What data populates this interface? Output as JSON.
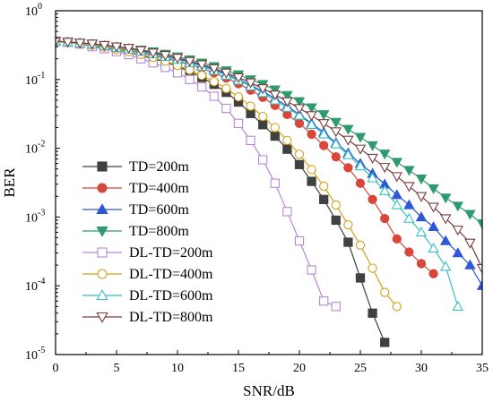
{
  "chart_data": {
    "type": "line",
    "xlabel": "SNR/dB",
    "ylabel": "BER",
    "xlim": [
      0,
      35
    ],
    "ylim": [
      1e-05,
      1
    ],
    "yscale": "log",
    "xticks": [
      0,
      5,
      10,
      15,
      20,
      25,
      30,
      35
    ],
    "xtick_labels": [
      "0",
      "5",
      "10",
      "15",
      "20",
      "25",
      "30",
      "35"
    ],
    "yticks": [
      1e-05,
      0.0001,
      0.001,
      0.01,
      0.1,
      1
    ],
    "ytick_labels": [
      {
        "base": "10",
        "exp": "-5"
      },
      {
        "base": "10",
        "exp": "-4"
      },
      {
        "base": "10",
        "exp": "-3"
      },
      {
        "base": "10",
        "exp": "-2"
      },
      {
        "base": "10",
        "exp": "-1"
      },
      {
        "base": "10",
        "exp": "0"
      }
    ],
    "legend_position": "center-left",
    "series": [
      {
        "name": "TD=200m",
        "color": "#404040",
        "marker": "square",
        "filled": true,
        "x": [
          0,
          1,
          2,
          3,
          4,
          5,
          6,
          7,
          8,
          9,
          10,
          11,
          12,
          13,
          14,
          15,
          16,
          17,
          18,
          19,
          20,
          21,
          22,
          23,
          24,
          25,
          26,
          27
        ],
        "y": [
          0.36,
          0.35,
          0.33,
          0.31,
          0.29,
          0.27,
          0.25,
          0.225,
          0.2,
          0.18,
          0.155,
          0.13,
          0.107,
          0.085,
          0.065,
          0.047,
          0.032,
          0.022,
          0.015,
          0.0097,
          0.0058,
          0.0033,
          0.0018,
          0.0009,
          0.00043,
          0.00013,
          4e-05,
          1.5e-05
        ]
      },
      {
        "name": "TD=400m",
        "color": "#d9463a",
        "marker": "circle",
        "filled": true,
        "x": [
          0,
          1,
          2,
          3,
          4,
          5,
          6,
          7,
          8,
          9,
          10,
          11,
          12,
          13,
          14,
          15,
          16,
          17,
          18,
          19,
          20,
          21,
          22,
          23,
          24,
          25,
          26,
          27,
          28,
          29,
          30,
          31
        ],
        "y": [
          0.36,
          0.35,
          0.34,
          0.32,
          0.3,
          0.285,
          0.265,
          0.245,
          0.225,
          0.205,
          0.185,
          0.165,
          0.145,
          0.125,
          0.105,
          0.087,
          0.07,
          0.055,
          0.042,
          0.031,
          0.023,
          0.016,
          0.011,
          0.0075,
          0.0052,
          0.0031,
          0.0018,
          0.00095,
          0.00048,
          0.00031,
          0.00021,
          0.00015
        ]
      },
      {
        "name": "TD=600m",
        "color": "#2e57d6",
        "marker": "triangle-up",
        "filled": true,
        "x": [
          0,
          1,
          2,
          3,
          4,
          5,
          6,
          7,
          8,
          9,
          10,
          11,
          12,
          13,
          14,
          15,
          16,
          17,
          18,
          19,
          20,
          21,
          22,
          23,
          24,
          25,
          26,
          27,
          28,
          29,
          30,
          31,
          32,
          33,
          34,
          35
        ],
        "y": [
          0.36,
          0.35,
          0.34,
          0.325,
          0.31,
          0.295,
          0.28,
          0.26,
          0.24,
          0.22,
          0.2,
          0.18,
          0.16,
          0.14,
          0.12,
          0.1,
          0.083,
          0.067,
          0.053,
          0.041,
          0.031,
          0.023,
          0.017,
          0.012,
          0.0085,
          0.006,
          0.0043,
          0.003,
          0.0021,
          0.0015,
          0.001,
          0.00072,
          0.00045,
          0.0003,
          0.0002,
          0.0001
        ]
      },
      {
        "name": "TD=800m",
        "color": "#2e9a6e",
        "marker": "triangle-down",
        "filled": true,
        "x": [
          0,
          1,
          2,
          3,
          4,
          5,
          6,
          7,
          8,
          9,
          10,
          11,
          12,
          13,
          14,
          15,
          16,
          17,
          18,
          19,
          20,
          21,
          22,
          23,
          24,
          25,
          26,
          27,
          28,
          29,
          30,
          31,
          32,
          33,
          34,
          35
        ],
        "y": [
          0.36,
          0.35,
          0.34,
          0.33,
          0.315,
          0.3,
          0.285,
          0.27,
          0.255,
          0.235,
          0.215,
          0.195,
          0.175,
          0.155,
          0.135,
          0.118,
          0.1,
          0.085,
          0.071,
          0.059,
          0.048,
          0.039,
          0.031,
          0.024,
          0.019,
          0.0145,
          0.011,
          0.0083,
          0.0063,
          0.0048,
          0.0036,
          0.0026,
          0.0019,
          0.00145,
          0.0011,
          0.0008
        ]
      },
      {
        "name": "DL-TD=200m",
        "color": "#b388d6",
        "marker": "square",
        "filled": false,
        "x": [
          0,
          1,
          2,
          3,
          4,
          5,
          6,
          7,
          8,
          9,
          10,
          11,
          12,
          13,
          14,
          15,
          16,
          17,
          18,
          19,
          20,
          21,
          22,
          23
        ],
        "y": [
          0.36,
          0.35,
          0.33,
          0.3,
          0.28,
          0.255,
          0.23,
          0.2,
          0.175,
          0.15,
          0.125,
          0.1,
          0.078,
          0.057,
          0.038,
          0.023,
          0.013,
          0.0068,
          0.0031,
          0.0012,
          0.00045,
          0.00017,
          6e-05,
          5e-05
        ]
      },
      {
        "name": "DL-TD=400m",
        "color": "#d4a017",
        "marker": "circle",
        "filled": false,
        "x": [
          0,
          1,
          2,
          3,
          4,
          5,
          6,
          7,
          8,
          9,
          10,
          11,
          12,
          13,
          14,
          15,
          16,
          17,
          18,
          19,
          20,
          21,
          22,
          23,
          24,
          25,
          26,
          27,
          28
        ],
        "y": [
          0.36,
          0.35,
          0.335,
          0.315,
          0.295,
          0.275,
          0.255,
          0.23,
          0.21,
          0.185,
          0.16,
          0.138,
          0.115,
          0.093,
          0.074,
          0.056,
          0.041,
          0.029,
          0.02,
          0.013,
          0.0082,
          0.0049,
          0.0028,
          0.0015,
          0.00077,
          0.00039,
          0.00018,
          8e-05,
          5e-05
        ]
      },
      {
        "name": "DL-TD=600m",
        "color": "#35c2c2",
        "marker": "triangle-up",
        "filled": false,
        "x": [
          0,
          1,
          2,
          3,
          4,
          5,
          6,
          7,
          8,
          9,
          10,
          11,
          12,
          13,
          14,
          15,
          16,
          17,
          18,
          19,
          20,
          21,
          22,
          23,
          24,
          25,
          26,
          27,
          28,
          29,
          30,
          31,
          32,
          33
        ],
        "y": [
          0.36,
          0.35,
          0.34,
          0.325,
          0.31,
          0.29,
          0.275,
          0.255,
          0.235,
          0.215,
          0.195,
          0.175,
          0.155,
          0.135,
          0.115,
          0.097,
          0.08,
          0.064,
          0.05,
          0.039,
          0.03,
          0.022,
          0.016,
          0.0115,
          0.008,
          0.0055,
          0.0037,
          0.0024,
          0.0015,
          0.00095,
          0.0006,
          0.00035,
          0.00019,
          5e-05
        ]
      },
      {
        "name": "DL-TD=800m",
        "color": "#7a3b3b",
        "marker": "triangle-down",
        "filled": false,
        "x": [
          0,
          1,
          2,
          3,
          4,
          5,
          6,
          7,
          8,
          9,
          10,
          11,
          12,
          13,
          14,
          15,
          16,
          17,
          18,
          19,
          20,
          21,
          22,
          23,
          24,
          25,
          26,
          27,
          28,
          29,
          30,
          31,
          32,
          33,
          34,
          35
        ],
        "y": [
          0.36,
          0.35,
          0.34,
          0.33,
          0.315,
          0.3,
          0.285,
          0.265,
          0.245,
          0.225,
          0.205,
          0.185,
          0.165,
          0.145,
          0.125,
          0.107,
          0.09,
          0.074,
          0.06,
          0.048,
          0.038,
          0.03,
          0.023,
          0.0175,
          0.0132,
          0.0098,
          0.0072,
          0.0053,
          0.0039,
          0.0028,
          0.002,
          0.0014,
          0.00095,
          0.00065,
          0.00042,
          0.00018
        ]
      }
    ]
  }
}
